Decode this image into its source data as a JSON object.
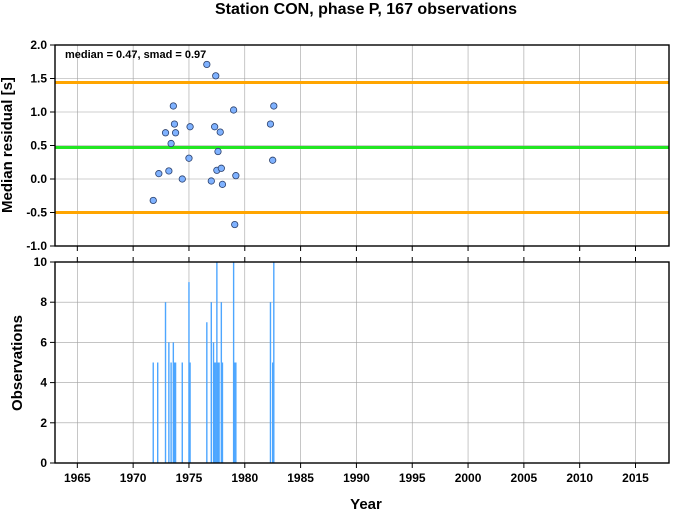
{
  "chart_data": [
    {
      "type": "scatter",
      "title": "Station CON, phase P, 167 observations",
      "ylabel": "Median residual [s]",
      "annotation": "median = 0.47, smad = 0.97",
      "xlim": [
        1963,
        2018
      ],
      "ylim": [
        -1.0,
        2.0
      ],
      "yticks": [
        "-1.0",
        "-0.5",
        "0.0",
        "0.5",
        "1.0",
        "1.5",
        "2.0"
      ],
      "median": 0.47,
      "upper_band": 1.44,
      "lower_band": -0.5,
      "colors": {
        "median_line": "#22e622",
        "band_lines": "#ffa500",
        "points": "#7fb2ff"
      },
      "x": [
        1971.8,
        1972.3,
        1972.9,
        1973.2,
        1973.4,
        1973.6,
        1973.7,
        1973.8,
        1974.4,
        1975.0,
        1975.1,
        1976.6,
        1977.0,
        1977.3,
        1977.4,
        1977.5,
        1977.6,
        1977.8,
        1977.9,
        1978.0,
        1979.0,
        1979.1,
        1979.2,
        1982.3,
        1982.5,
        1982.6
      ],
      "y": [
        -0.32,
        0.08,
        0.69,
        0.12,
        0.53,
        1.09,
        0.82,
        0.69,
        0.0,
        0.31,
        0.78,
        1.71,
        -0.03,
        0.78,
        1.54,
        0.13,
        0.41,
        0.7,
        0.16,
        -0.08,
        1.03,
        -0.68,
        0.05,
        0.82,
        0.28,
        1.09
      ]
    },
    {
      "type": "bar",
      "ylabel": "Observations",
      "xlabel": "Year",
      "xlim": [
        1963,
        2018
      ],
      "ylim": [
        0,
        10
      ],
      "yticks": [
        "0",
        "2",
        "4",
        "6",
        "8",
        "10"
      ],
      "xticks": [
        "1965",
        "1970",
        "1975",
        "1980",
        "1985",
        "1990",
        "1995",
        "2000",
        "2005",
        "2010",
        "2015"
      ],
      "colors": {
        "bars": "#4da6ff"
      },
      "x": [
        1971.8,
        1972.2,
        1972.9,
        1973.2,
        1973.4,
        1973.6,
        1973.7,
        1973.8,
        1974.4,
        1975.0,
        1975.1,
        1976.6,
        1977.0,
        1977.2,
        1977.3,
        1977.4,
        1977.5,
        1977.6,
        1977.7,
        1977.9,
        1978.0,
        1979.0,
        1979.1,
        1979.2,
        1982.3,
        1982.5,
        1982.6
      ],
      "values": [
        5,
        5,
        8,
        6,
        5,
        6,
        5,
        5,
        5,
        9,
        5,
        7,
        8,
        6,
        5,
        5,
        10,
        5,
        5,
        8,
        5,
        10,
        5,
        5,
        8,
        5,
        10
      ]
    }
  ]
}
